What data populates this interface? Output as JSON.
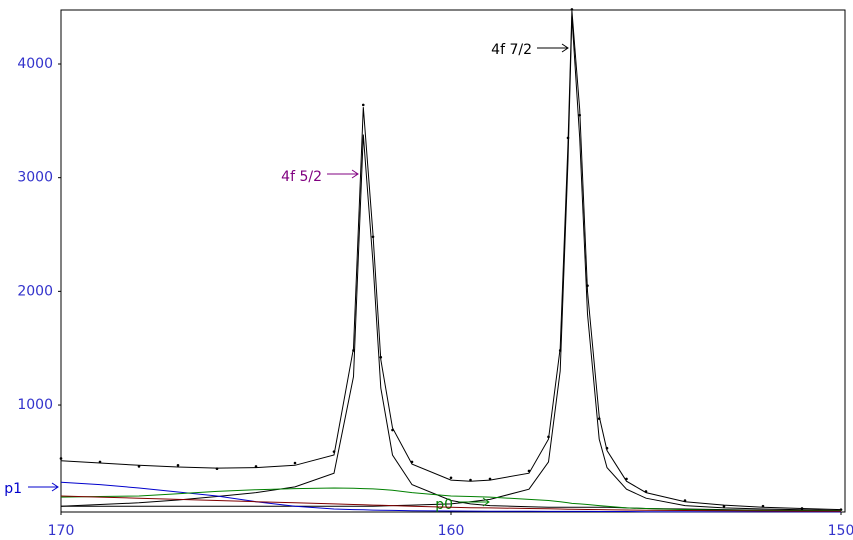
{
  "chart_data": {
    "type": "line",
    "x": [
      170,
      169,
      168,
      167,
      166,
      165,
      164,
      163,
      162.5,
      162.25,
      162,
      161.8,
      161.5,
      161,
      160,
      159.5,
      159,
      158,
      157.5,
      157.2,
      157,
      156.9,
      156.7,
      156.5,
      156.2,
      156,
      155.5,
      155,
      154,
      153,
      152,
      151,
      150
    ],
    "xlim": [
      170,
      150
    ],
    "xticks": [
      170,
      160,
      150
    ],
    "ylim": [
      59,
      4475
    ],
    "yticks": [
      1000,
      2000,
      3000,
      4000
    ],
    "tick_color": "#3333cc",
    "series": [
      {
        "style": "dots",
        "color": "#000000",
        "values": [
          530,
          500,
          460,
          470,
          440,
          460,
          490,
          590,
          1480,
          3640,
          2480,
          1420,
          780,
          500,
          360,
          340,
          350,
          420,
          720,
          1480,
          3350,
          4480,
          3550,
          2050,
          880,
          620,
          350,
          240,
          160,
          110,
          110,
          90,
          80
        ]
      },
      {
        "style": "line",
        "color": "#000000",
        "values": [
          510,
          490,
          470,
          455,
          445,
          450,
          470,
          560,
          1500,
          3620,
          2500,
          1400,
          800,
          480,
          340,
          330,
          340,
          400,
          700,
          1500,
          3300,
          4470,
          3600,
          2000,
          900,
          600,
          330,
          230,
          150,
          120,
          100,
          90,
          80
        ]
      },
      {
        "name": "4f 5/2",
        "style": "line",
        "color": "#000000",
        "label_color": "#800080",
        "values": [
          110,
          125,
          140,
          165,
          195,
          230,
          280,
          400,
          1250,
          3380,
          2250,
          1150,
          560,
          300,
          160,
          130,
          115,
          105,
          100,
          100,
          100,
          100,
          100,
          100,
          100,
          100,
          95,
          90,
          85,
          80,
          75,
          72,
          70
        ]
      },
      {
        "name": "4f 7/2",
        "style": "line",
        "color": "#000000",
        "label_color": "#000000",
        "values": [
          110,
          110,
          110,
          110,
          110,
          110,
          110,
          110,
          110,
          110,
          110,
          112,
          115,
          120,
          130,
          150,
          170,
          260,
          500,
          1300,
          3150,
          4420,
          3350,
          1800,
          700,
          450,
          260,
          180,
          115,
          95,
          85,
          78,
          72
        ]
      },
      {
        "name": "p1",
        "style": "line",
        "color": "#0000cc",
        "label_color": "#0000cc",
        "values": [
          320,
          300,
          270,
          235,
          200,
          150,
          110,
          85,
          80,
          78,
          76,
          75,
          73,
          70,
          68,
          67,
          66,
          65,
          64,
          64,
          64,
          64,
          64,
          64,
          63,
          63,
          63,
          62,
          62,
          61,
          61,
          60,
          60
        ]
      },
      {
        "name": "p0",
        "style": "line",
        "color": "#008000",
        "label_color": "#008000",
        "values": [
          190,
          195,
          200,
          220,
          240,
          255,
          265,
          270,
          268,
          265,
          262,
          258,
          250,
          230,
          200,
          195,
          190,
          170,
          160,
          150,
          140,
          135,
          130,
          125,
          115,
          110,
          95,
          90,
          80,
          75,
          72,
          70,
          70
        ]
      },
      {
        "style": "line",
        "color": "#800000",
        "values": [
          200,
          190,
          180,
          170,
          160,
          150,
          140,
          130,
          125,
          122,
          120,
          118,
          115,
          110,
          100,
          97,
          95,
          90,
          87,
          85,
          84,
          83,
          82,
          81,
          80,
          79,
          77,
          75,
          72,
          70,
          68,
          66,
          65
        ]
      }
    ]
  }
}
